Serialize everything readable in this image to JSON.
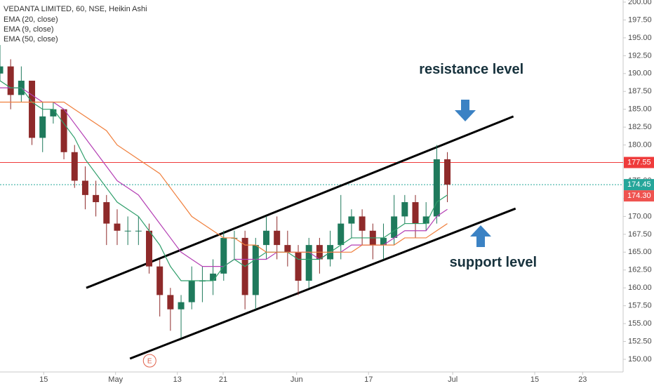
{
  "chart_data": {
    "type": "candlestick",
    "title": "VEDANTA LIMITED, 60, NSE, Heikin Ashi",
    "x": [
      0,
      2,
      4,
      6,
      8,
      10,
      12,
      14,
      16,
      18,
      20,
      22,
      24,
      26,
      28,
      30,
      32,
      34,
      36,
      38,
      40,
      42,
      44,
      46,
      48,
      50,
      52,
      54,
      56,
      58,
      60,
      62,
      64,
      66,
      68,
      70,
      72,
      74,
      76,
      78,
      80,
      82,
      84
    ],
    "open": [
      190,
      191,
      187,
      189,
      181,
      184,
      185,
      179,
      175,
      173,
      172,
      169,
      168,
      168,
      168,
      163,
      159,
      157,
      158,
      161,
      161,
      162,
      167,
      167,
      159,
      166,
      168,
      166,
      165,
      161,
      166,
      164,
      166,
      169,
      170,
      168,
      166,
      167,
      170,
      172,
      169,
      170,
      178
    ],
    "high": [
      194,
      192,
      191,
      189,
      186,
      186,
      185,
      180,
      177,
      175,
      173,
      171,
      170,
      170,
      169,
      164,
      160,
      159,
      163,
      163,
      164,
      168,
      168,
      168,
      167,
      170,
      170,
      168,
      166,
      167,
      167,
      168,
      173,
      171,
      171,
      169,
      169,
      173,
      173,
      173,
      172,
      180,
      179
    ],
    "low": [
      189,
      185,
      186,
      180,
      179,
      183,
      178,
      174,
      171,
      170,
      166,
      166,
      166,
      166,
      162,
      156,
      154,
      153,
      157,
      158,
      159,
      161,
      164,
      157,
      157,
      164,
      164,
      163,
      159,
      160,
      162,
      163,
      164,
      167,
      166,
      164,
      164,
      166,
      169,
      167,
      168,
      169,
      172
    ],
    "close": [
      191,
      187,
      189,
      181,
      184,
      185,
      179,
      175,
      173,
      172,
      169,
      168,
      168,
      168,
      163,
      159,
      157,
      158,
      161,
      161,
      162,
      167,
      167,
      159,
      166,
      168,
      166,
      165,
      161,
      166,
      164,
      166,
      169,
      170,
      168,
      166,
      167,
      170,
      172,
      169,
      170,
      178,
      174.45
    ],
    "up_color": "#1f7a5c",
    "down_color": "#8e2a2a",
    "series": [
      {
        "name": "EMA (20, close)",
        "color": "#b43fb4",
        "values": [
          188,
          188,
          188,
          187,
          186,
          186,
          185,
          183,
          181,
          179,
          177,
          175,
          174,
          173,
          171,
          169,
          167,
          165,
          164,
          163,
          163,
          163,
          164,
          164,
          164,
          164,
          165,
          165,
          165,
          165,
          164,
          165,
          165,
          166,
          166,
          166,
          166,
          167,
          168,
          168,
          168,
          170,
          171
        ]
      },
      {
        "name": "EMA (9, close)",
        "color": "#2e9e6a",
        "values": [
          189,
          188,
          188,
          186,
          185,
          185,
          183,
          181,
          178,
          176,
          174,
          172,
          171,
          170,
          168,
          166,
          163,
          161,
          161,
          161,
          161,
          163,
          164,
          163,
          164,
          165,
          165,
          165,
          164,
          164,
          164,
          165,
          166,
          167,
          167,
          167,
          167,
          168,
          169,
          169,
          169,
          172,
          173
        ]
      },
      {
        "name": "EMA (50, close)",
        "color": "#f07f3c",
        "values": [
          186,
          186,
          186,
          186,
          186,
          186,
          186,
          185,
          184,
          183,
          182,
          180,
          179,
          178,
          177,
          176,
          174,
          172,
          170,
          169,
          168,
          167,
          167,
          166,
          166,
          165,
          165,
          165,
          165,
          165,
          165,
          165,
          165,
          165,
          166,
          166,
          166,
          166,
          167,
          167,
          167,
          168,
          169
        ]
      }
    ],
    "xlim": [
      0,
      117
    ],
    "xticks": [
      {
        "value": 8.2,
        "label": "15"
      },
      {
        "value": 21.7,
        "label": "May"
      },
      {
        "value": 33.3,
        "label": "13"
      },
      {
        "value": 41.9,
        "label": "21"
      },
      {
        "value": 55.7,
        "label": "Jun"
      },
      {
        "value": 69.2,
        "label": "17"
      },
      {
        "value": 85,
        "label": "Jul"
      },
      {
        "value": 100.4,
        "label": "15"
      },
      {
        "value": 109.4,
        "label": "23"
      }
    ],
    "ylim": [
      150,
      200
    ],
    "yticks": [
      {
        "value": 150,
        "label": "150.00"
      },
      {
        "value": 152.5,
        "label": "152.50"
      },
      {
        "value": 155,
        "label": "155.00"
      },
      {
        "value": 157.5,
        "label": "157.50"
      },
      {
        "value": 160,
        "label": "160.00"
      },
      {
        "value": 162.5,
        "label": "162.50"
      },
      {
        "value": 165,
        "label": "165.00"
      },
      {
        "value": 167.5,
        "label": "167.50"
      },
      {
        "value": 170,
        "label": "170.00"
      },
      {
        "value": 172.5,
        "label": "172.50"
      },
      {
        "value": 175,
        "label": "175.00"
      },
      {
        "value": 177.5,
        "label": "177.50"
      },
      {
        "value": 180,
        "label": "180.00"
      },
      {
        "value": 182.5,
        "label": "182.50"
      },
      {
        "value": 185,
        "label": "185.00"
      },
      {
        "value": 187.5,
        "label": "187.50"
      },
      {
        "value": 190,
        "label": "190.00"
      },
      {
        "value": 192.5,
        "label": "192.50"
      },
      {
        "value": 195,
        "label": "195.00"
      },
      {
        "value": 197.5,
        "label": "197.50"
      },
      {
        "value": 200,
        "label": "200.00"
      }
    ],
    "grid": false,
    "price_lines": [
      {
        "value": 177.55,
        "label": "177.55",
        "color": "#ef3b3b",
        "style": "solid"
      },
      {
        "value": 174.45,
        "label": "174.45",
        "color": "#26a69a",
        "style": "dotted"
      },
      {
        "value": 174.3,
        "label": "174.30",
        "color": "#ef5350",
        "style": "none"
      }
    ],
    "trendlines": [
      {
        "x": [
          16.2,
          96.4
        ],
        "y": [
          160,
          184
        ]
      },
      {
        "x": [
          24.4,
          96.8
        ],
        "y": [
          150.1,
          171.1
        ]
      }
    ],
    "annotations": [
      {
        "text": "resistance level",
        "x": 88.5,
        "y": 190.5
      },
      {
        "text": "support level",
        "x": 92.6,
        "y": 163.5
      }
    ],
    "event_marker": {
      "text": "E",
      "x": 28.1
    }
  }
}
